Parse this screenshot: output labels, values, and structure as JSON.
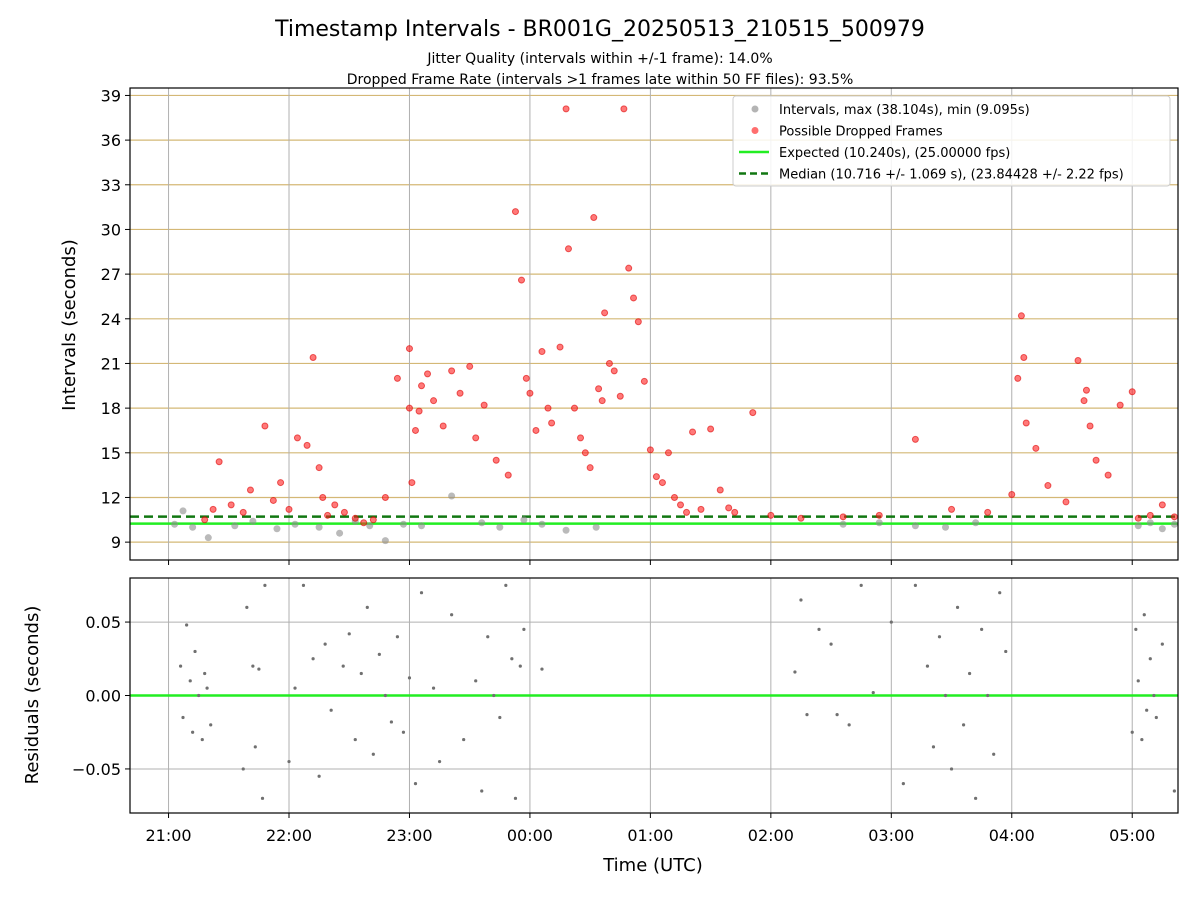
{
  "chart_data": [
    {
      "type": "scatter",
      "title": "Timestamp Intervals - BR001G_20250513_210515_500979",
      "subtitle_lines": [
        "Jitter Quality (intervals within +/-1 frame): 14.0%",
        "Dropped Frame Rate (intervals >1 frames late within 50 FF files): 93.5%"
      ],
      "ylabel": "Intervals (seconds)",
      "xlabel": "",
      "x_unit": "hours after 21:00 UTC (May 13, 2025); tick labels show clock time",
      "xlim": [
        -0.32,
        8.38
      ],
      "ylim": [
        7.8,
        39.5
      ],
      "yticks": [
        9,
        12,
        15,
        18,
        21,
        24,
        27,
        30,
        33,
        36,
        39
      ],
      "ytick_labels": [
        "9",
        "12",
        "15",
        "18",
        "21",
        "24",
        "27",
        "30",
        "33",
        "36",
        "39"
      ],
      "y_gridline_color": "#d4b876",
      "vertical_grid": true,
      "legend": {
        "placement": "top-right",
        "entries": [
          {
            "label": "Intervals, max (38.104s), min (9.095s)",
            "kind": "marker",
            "color": "#8c8c8c"
          },
          {
            "label": "Possible Dropped Frames",
            "kind": "marker",
            "color": "#ff2020"
          },
          {
            "label": "Expected (10.240s), (25.00000 fps)",
            "kind": "line",
            "color": "#22ee22"
          },
          {
            "label": "Median (10.716 +/- 1.069 s), (23.84428 +/- 2.22 fps)",
            "kind": "dashed",
            "color": "#117711"
          }
        ]
      },
      "reference_lines": [
        {
          "name": "Expected",
          "y": 10.24,
          "color": "#22ee22",
          "style": "solid"
        },
        {
          "name": "Median",
          "y": 10.716,
          "color": "#117711",
          "style": "dashed"
        }
      ],
      "series": [
        {
          "name": "Intervals",
          "color": "#8c8c8c",
          "x": [
            0.05,
            0.12,
            0.2,
            0.33,
            0.55,
            0.7,
            0.9,
            1.05,
            1.25,
            1.42,
            1.55,
            1.67,
            1.8,
            1.95,
            2.1,
            2.35,
            2.6,
            2.75,
            2.95,
            3.1,
            3.3,
            3.55,
            5.6,
            5.9,
            6.2,
            6.45,
            6.7,
            8.05,
            8.15,
            8.25,
            8.35
          ],
          "y": [
            10.2,
            11.1,
            10.0,
            9.3,
            10.1,
            10.4,
            9.9,
            10.2,
            10.0,
            9.6,
            10.4,
            10.1,
            9.1,
            10.2,
            10.1,
            12.1,
            10.3,
            10.0,
            10.5,
            10.2,
            9.8,
            10.0,
            10.2,
            10.3,
            10.1,
            10.0,
            10.3,
            10.1,
            10.3,
            9.9,
            10.2
          ]
        },
        {
          "name": "Possible Dropped Frames",
          "color": "#ff2020",
          "x": [
            0.3,
            0.37,
            0.42,
            0.52,
            0.62,
            0.68,
            0.8,
            0.87,
            0.93,
            1.0,
            1.07,
            1.15,
            1.2,
            1.25,
            1.28,
            1.32,
            1.38,
            1.46,
            1.55,
            1.62,
            1.7,
            1.8,
            1.9,
            2.0,
            2.0,
            2.02,
            2.05,
            2.08,
            2.1,
            2.15,
            2.2,
            2.28,
            2.35,
            2.42,
            2.5,
            2.55,
            2.62,
            2.72,
            2.82,
            2.88,
            2.93,
            2.97,
            3.0,
            3.05,
            3.1,
            3.15,
            3.18,
            3.25,
            3.3,
            3.32,
            3.37,
            3.42,
            3.46,
            3.5,
            3.53,
            3.57,
            3.6,
            3.62,
            3.66,
            3.7,
            3.75,
            3.78,
            3.82,
            3.86,
            3.9,
            3.95,
            4.0,
            4.05,
            4.1,
            4.15,
            4.2,
            4.25,
            4.3,
            4.35,
            4.42,
            4.5,
            4.58,
            4.65,
            4.7,
            4.85,
            5.0,
            5.25,
            5.6,
            5.9,
            6.2,
            6.5,
            6.8,
            7.0,
            7.05,
            7.08,
            7.1,
            7.12,
            7.2,
            7.3,
            7.45,
            7.55,
            7.6,
            7.62,
            7.65,
            7.7,
            7.8,
            7.9,
            8.0,
            8.05,
            8.15,
            8.25,
            8.35
          ],
          "y": [
            10.5,
            11.2,
            14.4,
            11.5,
            11.0,
            12.5,
            16.8,
            11.8,
            13.0,
            11.2,
            16.0,
            15.5,
            21.4,
            14.0,
            12.0,
            10.8,
            11.5,
            11.0,
            10.6,
            10.3,
            10.5,
            12.0,
            20.0,
            22.0,
            18.0,
            13.0,
            16.5,
            17.8,
            19.5,
            20.3,
            18.5,
            16.8,
            20.5,
            19.0,
            20.8,
            16.0,
            18.2,
            14.5,
            13.5,
            31.2,
            26.6,
            20.0,
            19.0,
            16.5,
            21.8,
            18.0,
            17.0,
            22.1,
            38.1,
            28.7,
            18.0,
            16.0,
            15.0,
            14.0,
            30.8,
            19.3,
            18.5,
            24.4,
            21.0,
            20.5,
            18.8,
            38.1,
            27.4,
            25.4,
            23.8,
            19.8,
            15.2,
            13.4,
            13.0,
            15.0,
            12.0,
            11.5,
            11.0,
            16.4,
            11.2,
            16.6,
            12.5,
            11.3,
            11.0,
            17.7,
            10.8,
            10.6,
            10.7,
            10.8,
            15.9,
            11.2,
            11.0,
            12.2,
            20.0,
            24.2,
            21.4,
            17.0,
            15.3,
            12.8,
            11.7,
            21.2,
            18.5,
            19.2,
            16.8,
            14.5,
            13.5,
            18.2,
            19.1,
            10.6,
            10.8,
            11.5,
            10.7
          ]
        }
      ]
    },
    {
      "type": "scatter",
      "title": "",
      "ylabel": "Residuals (seconds)",
      "xlabel": "Time (UTC)",
      "xlim": [
        -0.32,
        8.38
      ],
      "ylim": [
        -0.08,
        0.08
      ],
      "yticks": [
        -0.05,
        0.0,
        0.05
      ],
      "ytick_labels": [
        "−0.05",
        "0.00",
        "0.05"
      ],
      "xticks": [
        0,
        1,
        2,
        3,
        4,
        5,
        6,
        7,
        8
      ],
      "xtick_labels": [
        "21:00",
        "22:00",
        "23:00",
        "00:00",
        "01:00",
        "02:00",
        "03:00",
        "04:00",
        "05:00"
      ],
      "vertical_grid": true,
      "reference_lines": [
        {
          "name": "zero",
          "y": 0.0,
          "color": "#22ee22",
          "style": "solid"
        }
      ],
      "series": [
        {
          "name": "Residuals",
          "color": "#707070",
          "x": [
            0.1,
            0.12,
            0.15,
            0.18,
            0.2,
            0.22,
            0.25,
            0.28,
            0.3,
            0.32,
            0.35,
            0.62,
            0.65,
            0.7,
            0.72,
            0.75,
            0.78,
            0.8,
            1.0,
            1.05,
            1.12,
            1.2,
            1.25,
            1.3,
            1.35,
            1.45,
            1.5,
            1.55,
            1.6,
            1.65,
            1.7,
            1.75,
            1.8,
            1.85,
            1.9,
            1.95,
            2.0,
            2.05,
            2.1,
            2.2,
            2.25,
            2.35,
            2.45,
            2.55,
            2.6,
            2.65,
            2.7,
            2.75,
            2.8,
            2.85,
            2.88,
            2.92,
            2.95,
            3.1,
            5.2,
            5.25,
            5.3,
            5.4,
            5.5,
            5.55,
            5.65,
            5.75,
            5.85,
            6.0,
            6.1,
            6.2,
            6.3,
            6.35,
            6.4,
            6.45,
            6.5,
            6.55,
            6.6,
            6.65,
            6.7,
            6.75,
            6.8,
            6.85,
            6.9,
            6.95,
            8.0,
            8.03,
            8.05,
            8.08,
            8.1,
            8.12,
            8.15,
            8.18,
            8.2,
            8.25,
            8.35
          ],
          "y": [
            0.02,
            -0.015,
            0.048,
            0.01,
            -0.025,
            0.03,
            0.0,
            -0.03,
            0.015,
            0.005,
            -0.02,
            -0.05,
            0.06,
            0.02,
            -0.035,
            0.018,
            -0.07,
            0.075,
            -0.045,
            0.005,
            0.075,
            0.025,
            -0.055,
            0.035,
            -0.01,
            0.02,
            0.042,
            -0.03,
            0.015,
            0.06,
            -0.04,
            0.028,
            0.0,
            -0.018,
            0.04,
            -0.025,
            0.012,
            -0.06,
            0.07,
            0.005,
            -0.045,
            0.055,
            -0.03,
            0.01,
            -0.065,
            0.04,
            0.0,
            -0.015,
            0.075,
            0.025,
            -0.07,
            0.02,
            0.045,
            0.018,
            0.016,
            0.065,
            -0.013,
            0.045,
            0.035,
            -0.013,
            -0.02,
            0.075,
            0.002,
            0.05,
            -0.06,
            0.075,
            0.02,
            -0.035,
            0.04,
            0.0,
            -0.05,
            0.06,
            -0.02,
            0.015,
            -0.07,
            0.045,
            0.0,
            -0.04,
            0.07,
            0.03,
            -0.025,
            0.045,
            0.01,
            -0.03,
            0.055,
            -0.01,
            0.025,
            0.0,
            -0.015,
            0.035,
            -0.065
          ]
        }
      ]
    }
  ]
}
